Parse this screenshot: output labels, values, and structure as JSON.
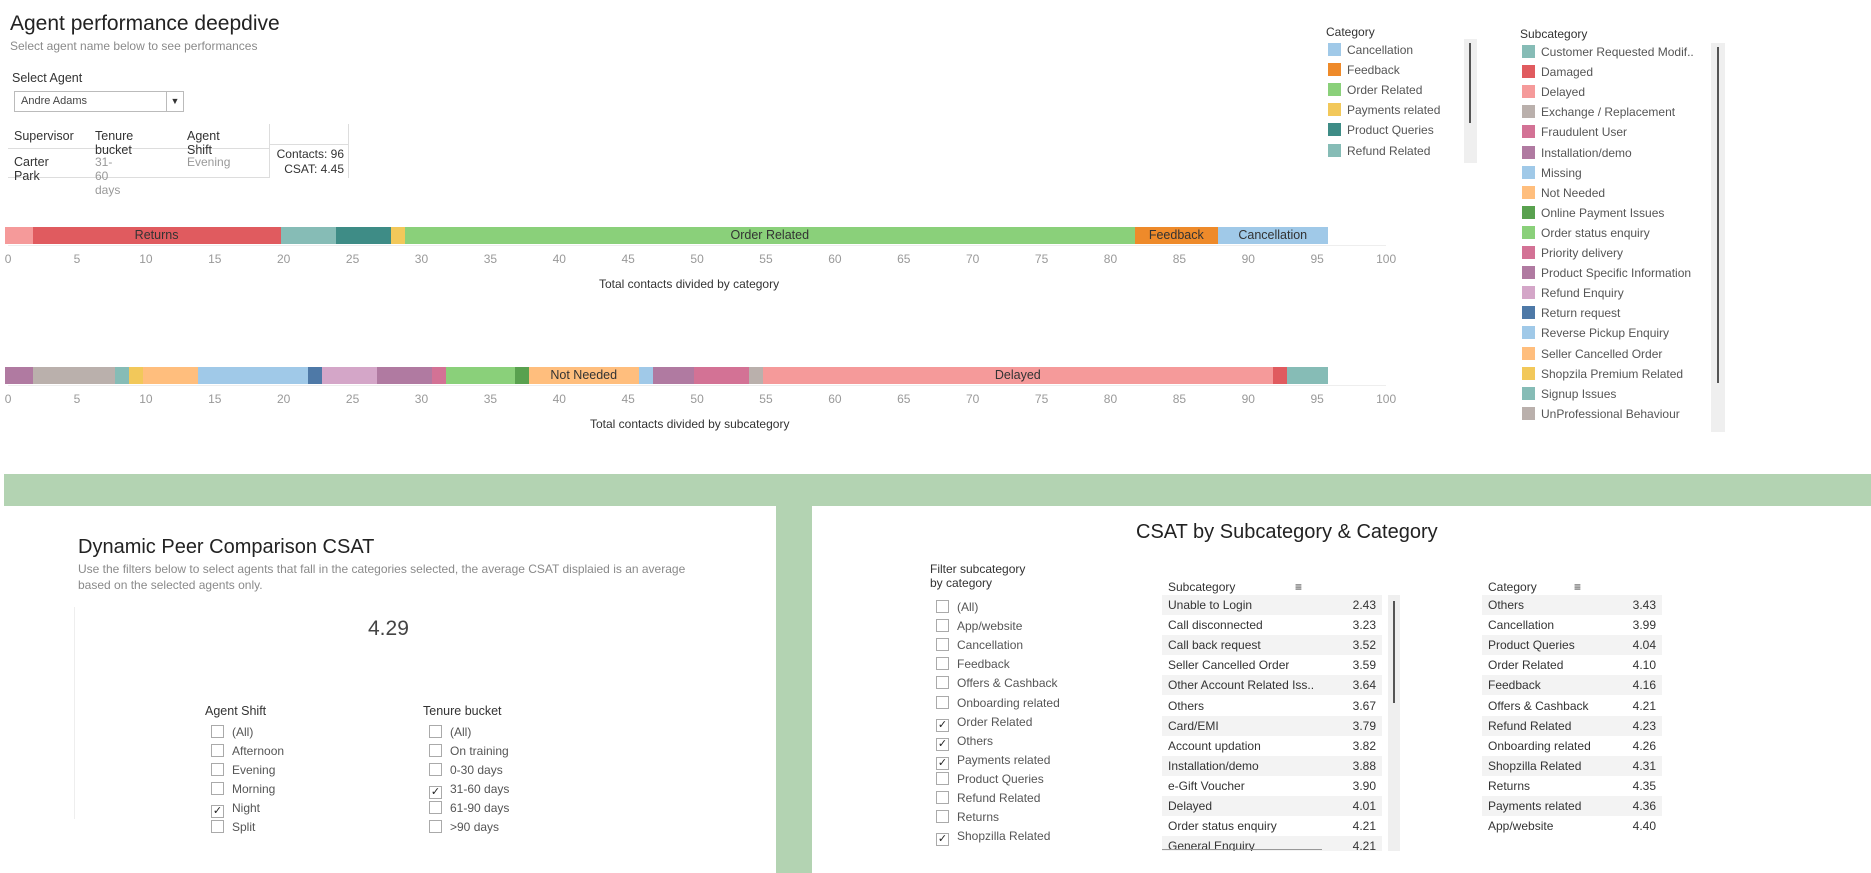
{
  "header": {
    "title": "Agent performance deepdive",
    "subtitle": "Select agent name below to see performances",
    "select_label": "Select Agent",
    "selected_agent": "Andre Adams"
  },
  "agent_info": {
    "headers": [
      "Supervisor",
      "Tenure bucket",
      "Agent Shift"
    ],
    "values": [
      "Carter Park",
      "31-60 days",
      "Evening"
    ],
    "contacts": "Contacts: 96",
    "csat": "CSAT: 4.45"
  },
  "colors": {
    "cancellation": "#a0c9e8",
    "feedback": "#ee8a2a",
    "order_related": "#8ad07a",
    "payments_related": "#f2c85a",
    "product_queries": "#3e8c86",
    "refund_related": "#86bcb6",
    "returns": "#e05b5f",
    "green_band": "#b3d3b2"
  },
  "chart_data": [
    {
      "type": "bar",
      "orientation": "horizontal-stacked",
      "xlabel": "Total contacts divided by category",
      "xlim": [
        0,
        100
      ],
      "xticks": [
        "0",
        "5",
        "10",
        "15",
        "20",
        "25",
        "30",
        "35",
        "40",
        "45",
        "50",
        "55",
        "60",
        "65",
        "70",
        "75",
        "80",
        "85",
        "90",
        "95",
        "100"
      ],
      "segments": [
        {
          "label": "",
          "value": 2,
          "color": "#f59a9a"
        },
        {
          "label": "Returns",
          "value": 18,
          "color": "#e05b5f"
        },
        {
          "label": "",
          "value": 4,
          "color": "#86bcb6"
        },
        {
          "label": "",
          "value": 4,
          "color": "#3e8c86"
        },
        {
          "label": "",
          "value": 1,
          "color": "#f2c85a"
        },
        {
          "label": "Order Related",
          "value": 53,
          "color": "#8ad07a"
        },
        {
          "label": "Feedback",
          "value": 6,
          "color": "#ee8a2a"
        },
        {
          "label": "Cancellation",
          "value": 8,
          "color": "#a0c9e8"
        }
      ]
    },
    {
      "type": "bar",
      "orientation": "horizontal-stacked",
      "xlabel": "Total contacts divided by subcategory",
      "xlim": [
        0,
        100
      ],
      "xticks": [
        "0",
        "5",
        "10",
        "15",
        "20",
        "25",
        "30",
        "35",
        "40",
        "45",
        "50",
        "55",
        "60",
        "65",
        "70",
        "75",
        "80",
        "85",
        "90",
        "95",
        "100"
      ],
      "segments": [
        {
          "label": "",
          "value": 2,
          "color": "#b07aa1"
        },
        {
          "label": "",
          "value": 6,
          "color": "#bab0ac"
        },
        {
          "label": "",
          "value": 1,
          "color": "#86bcb6"
        },
        {
          "label": "",
          "value": 1,
          "color": "#f2c85a"
        },
        {
          "label": "",
          "value": 4,
          "color": "#ffbe7d"
        },
        {
          "label": "",
          "value": 8,
          "color": "#a0c9e8"
        },
        {
          "label": "",
          "value": 1,
          "color": "#4e79a7"
        },
        {
          "label": "",
          "value": 4,
          "color": "#d4a6c8"
        },
        {
          "label": "",
          "value": 4,
          "color": "#b07aa1"
        },
        {
          "label": "",
          "value": 1,
          "color": "#d37295"
        },
        {
          "label": "",
          "value": 5,
          "color": "#8ad07a"
        },
        {
          "label": "",
          "value": 1,
          "color": "#59a14f"
        },
        {
          "label": "Not Needed",
          "value": 8,
          "color": "#ffbe7d"
        },
        {
          "label": "",
          "value": 1,
          "color": "#a0c9e8"
        },
        {
          "label": "",
          "value": 3,
          "color": "#b07aa1"
        },
        {
          "label": "",
          "value": 4,
          "color": "#d37295"
        },
        {
          "label": "",
          "value": 1,
          "color": "#bab0ac"
        },
        {
          "label": "Delayed",
          "value": 37,
          "color": "#f59a9a"
        },
        {
          "label": "",
          "value": 1,
          "color": "#e05b5f"
        },
        {
          "label": "",
          "value": 3,
          "color": "#86bcb6"
        }
      ]
    },
    {
      "type": "table",
      "title": "CSAT by Subcategory & Category",
      "header": "Subcategory",
      "rows": [
        {
          "name": "Unable to Login",
          "value": "2.43"
        },
        {
          "name": "Call disconnected",
          "value": "3.23"
        },
        {
          "name": "Call back request",
          "value": "3.52"
        },
        {
          "name": "Seller Cancelled Order",
          "value": "3.59"
        },
        {
          "name": "Other Account Related Iss..",
          "value": "3.64"
        },
        {
          "name": "Others",
          "value": "3.67"
        },
        {
          "name": "Card/EMI",
          "value": "3.79"
        },
        {
          "name": "Account updation",
          "value": "3.82"
        },
        {
          "name": "Installation/demo",
          "value": "3.88"
        },
        {
          "name": "e-Gift Voucher",
          "value": "3.90"
        },
        {
          "name": "Delayed",
          "value": "4.01"
        },
        {
          "name": "Order status enquiry",
          "value": "4.21"
        },
        {
          "name": "General Enquiry",
          "value": "4.21"
        }
      ]
    },
    {
      "type": "table",
      "header": "Category",
      "rows": [
        {
          "name": "Others",
          "value": "3.43"
        },
        {
          "name": "Cancellation",
          "value": "3.99"
        },
        {
          "name": "Product Queries",
          "value": "4.04"
        },
        {
          "name": "Order Related",
          "value": "4.10"
        },
        {
          "name": "Feedback",
          "value": "4.16"
        },
        {
          "name": "Offers & Cashback",
          "value": "4.21"
        },
        {
          "name": "Refund Related",
          "value": "4.23"
        },
        {
          "name": "Onboarding related",
          "value": "4.26"
        },
        {
          "name": "Shopzilla Related",
          "value": "4.31"
        },
        {
          "name": "Returns",
          "value": "4.35"
        },
        {
          "name": "Payments related",
          "value": "4.36"
        },
        {
          "name": "App/website",
          "value": "4.40"
        }
      ]
    }
  ],
  "category_legend": {
    "title": "Category",
    "items": [
      {
        "label": "Cancellation",
        "color": "#a0c9e8"
      },
      {
        "label": "Feedback",
        "color": "#ee8a2a"
      },
      {
        "label": "Order Related",
        "color": "#8ad07a"
      },
      {
        "label": "Payments related",
        "color": "#f2c85a"
      },
      {
        "label": "Product Queries",
        "color": "#3e8c86"
      },
      {
        "label": "Refund Related",
        "color": "#86bcb6"
      }
    ]
  },
  "subcategory_legend": {
    "title": "Subcategory",
    "items": [
      {
        "label": "Customer Requested Modif..",
        "color": "#86bcb6"
      },
      {
        "label": "Damaged",
        "color": "#e05b5f"
      },
      {
        "label": "Delayed",
        "color": "#f59a9a"
      },
      {
        "label": "Exchange / Replacement",
        "color": "#bab0ac"
      },
      {
        "label": "Fraudulent User",
        "color": "#d37295"
      },
      {
        "label": "Installation/demo",
        "color": "#b07aa1"
      },
      {
        "label": "Missing",
        "color": "#a0c9e8"
      },
      {
        "label": "Not Needed",
        "color": "#ffbe7d"
      },
      {
        "label": "Online Payment Issues",
        "color": "#59a14f"
      },
      {
        "label": "Order status enquiry",
        "color": "#8ad07a"
      },
      {
        "label": "Priority delivery",
        "color": "#d37295"
      },
      {
        "label": "Product Specific Information",
        "color": "#b07aa1"
      },
      {
        "label": "Refund Enquiry",
        "color": "#d4a6c8"
      },
      {
        "label": "Return request",
        "color": "#4e79a7"
      },
      {
        "label": "Reverse Pickup Enquiry",
        "color": "#a0c9e8"
      },
      {
        "label": "Seller Cancelled Order",
        "color": "#ffbe7d"
      },
      {
        "label": "Shopzila Premium Related",
        "color": "#f2c85a"
      },
      {
        "label": "Signup Issues",
        "color": "#86bcb6"
      },
      {
        "label": "UnProfessional Behaviour",
        "color": "#bab0ac"
      }
    ]
  },
  "peer": {
    "title": "Dynamic Peer Comparison CSAT",
    "note": "Use the filters below to select agents that fall in the categories selected, the average CSAT displaied is an average based on the selected agents only.",
    "avg_csat": "4.29",
    "shift_title": "Agent Shift",
    "shift_options": [
      {
        "label": "(All)",
        "checked": false
      },
      {
        "label": "Afternoon",
        "checked": false
      },
      {
        "label": "Evening",
        "checked": false
      },
      {
        "label": "Morning",
        "checked": false
      },
      {
        "label": "Night",
        "checked": true
      },
      {
        "label": "Split",
        "checked": false
      }
    ],
    "tenure_title": "Tenure bucket",
    "tenure_options": [
      {
        "label": "(All)",
        "checked": false
      },
      {
        "label": "On training",
        "checked": false
      },
      {
        "label": "0-30 days",
        "checked": false
      },
      {
        "label": "31-60 days",
        "checked": true
      },
      {
        "label": "61-90 days",
        "checked": false
      },
      {
        "label": ">90 days",
        "checked": false
      }
    ]
  },
  "csat_panel": {
    "title": "CSAT by Subcategory & Category",
    "filter_title_1": "Filter subcategory",
    "filter_title_2": "by category",
    "filter_options": [
      {
        "label": "(All)",
        "checked": false
      },
      {
        "label": "App/website",
        "checked": false
      },
      {
        "label": "Cancellation",
        "checked": false
      },
      {
        "label": "Feedback",
        "checked": false
      },
      {
        "label": "Offers & Cashback",
        "checked": false
      },
      {
        "label": "Onboarding related",
        "checked": false
      },
      {
        "label": "Order Related",
        "checked": true
      },
      {
        "label": "Others",
        "checked": true
      },
      {
        "label": "Payments related",
        "checked": true
      },
      {
        "label": "Product Queries",
        "checked": false
      },
      {
        "label": "Refund Related",
        "checked": false
      },
      {
        "label": "Returns",
        "checked": false
      },
      {
        "label": "Shopzilla Related",
        "checked": true
      }
    ],
    "sort_icon": "sort-descending-icon"
  }
}
